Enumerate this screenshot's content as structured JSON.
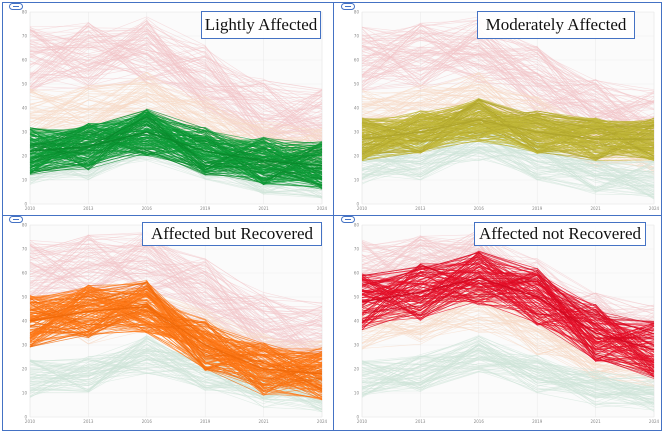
{
  "panels": [
    {
      "id": "lightly",
      "label": "Lightly Affected",
      "highlight_color": "#0f9d3a",
      "highlight_line_color": "#0a8a2c",
      "series_count": 160,
      "profile": [
        22,
        24,
        30,
        22,
        18,
        16
      ],
      "spread": 10
    },
    {
      "id": "moderately",
      "label": "Moderately Affected",
      "highlight_color": "#c2b83a",
      "highlight_line_color": "#b0a62c",
      "series_count": 160,
      "profile": [
        27,
        30,
        35,
        30,
        27,
        27
      ],
      "spread": 9
    },
    {
      "id": "recovered",
      "label": "Affected but Recovered",
      "highlight_color": "#ff7a1a",
      "highlight_line_color": "#f06a0a",
      "series_count": 140,
      "profile": [
        40,
        44,
        46,
        30,
        20,
        18
      ],
      "spread": 11
    },
    {
      "id": "not-recovered",
      "label": "Affected not Recovered",
      "highlight_color": "#e8102a",
      "highlight_line_color": "#d40a22",
      "series_count": 110,
      "profile": [
        48,
        52,
        58,
        50,
        35,
        28
      ],
      "spread": 12
    }
  ],
  "background": {
    "pink": "#f2c4c8",
    "peach": "#f7d8c4",
    "mint": "#cfe5d8"
  },
  "chart_data": [
    {
      "type": "line",
      "title": "Lightly Affected",
      "x": [
        "2010",
        "2013",
        "2016",
        "2019",
        "2021",
        "2024"
      ],
      "ylim": [
        0,
        80
      ],
      "series": [
        {
          "values": [
            22,
            24,
            30,
            22,
            18,
            16
          ]
        }
      ]
    },
    {
      "type": "line",
      "title": "Moderately Affected",
      "x": [
        "2010",
        "2013",
        "2016",
        "2019",
        "2021",
        "2024"
      ],
      "ylim": [
        0,
        80
      ],
      "series": [
        {
          "values": [
            27,
            30,
            35,
            30,
            27,
            27
          ]
        }
      ]
    },
    {
      "type": "line",
      "title": "Affected but Recovered",
      "x": [
        "2010",
        "2013",
        "2016",
        "2019",
        "2021",
        "2024"
      ],
      "ylim": [
        0,
        80
      ],
      "series": [
        {
          "values": [
            40,
            44,
            46,
            30,
            20,
            18
          ]
        }
      ]
    },
    {
      "type": "line",
      "title": "Affected not Recovered",
      "x": [
        "2010",
        "2013",
        "2016",
        "2019",
        "2021",
        "2024"
      ],
      "ylim": [
        0,
        80
      ],
      "series": [
        {
          "values": [
            48,
            52,
            58,
            50,
            35,
            28
          ]
        }
      ]
    }
  ]
}
